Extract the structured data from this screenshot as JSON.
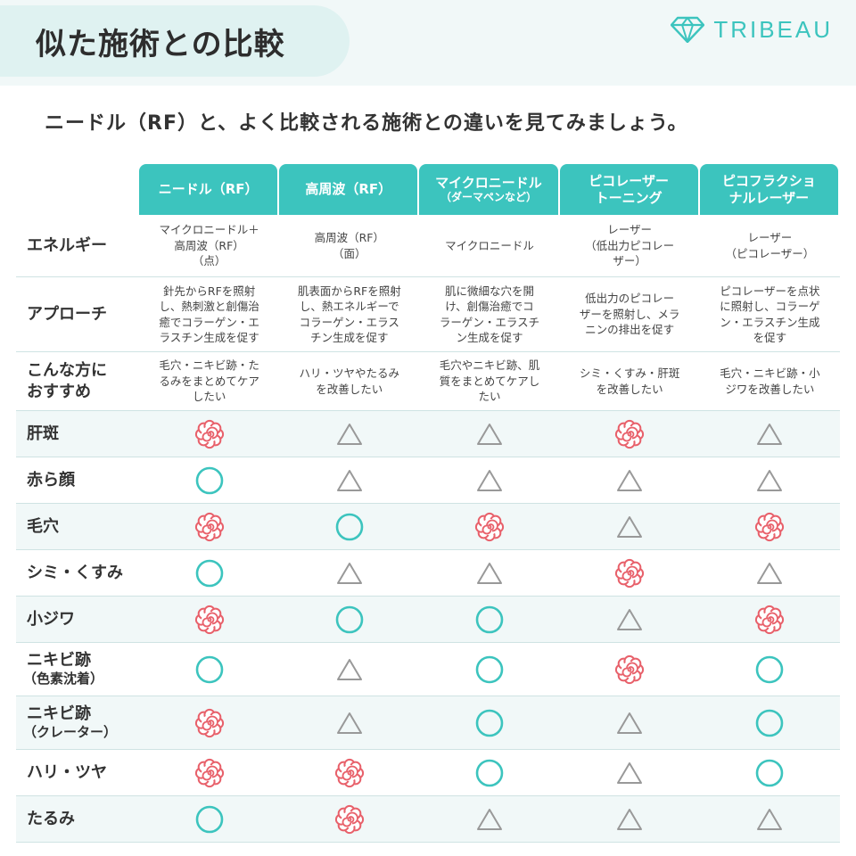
{
  "title": "似た施術との比較",
  "logo": {
    "text": "TRIBEAU",
    "icon": "diamond-icon"
  },
  "intro": "ニードル（RF）と、よく比較される施術との違いを見てみましょう。",
  "colors": {
    "accent": "#3cc4be",
    "flower": "#e8616b",
    "triangle": "#999999",
    "band": "#f1f8f8"
  },
  "legend_marks": {
    "flower": "best (flower)",
    "circle": "good (circle)",
    "triangle": "fair (triangle)"
  },
  "columns": [
    {
      "line1": "ニードル（RF）",
      "line2": ""
    },
    {
      "line1": "高周波（RF）",
      "line2": ""
    },
    {
      "line1": "マイクロニードル",
      "line2": "（ダーマペンなど）"
    },
    {
      "line1": "ピコレーザー",
      "line2": "トーニング"
    },
    {
      "line1": "ピコフラクショ",
      "line2": "ナルレーザー"
    }
  ],
  "text_rows": [
    {
      "label": "エネルギー",
      "cells": [
        "マイクロニードル＋\n高周波（RF）\n（点）",
        "高周波（RF）\n（面）",
        "マイクロニードル",
        "レーザー\n（低出力ピコレー\nザー）",
        "レーザー\n（ピコレーザー）"
      ]
    },
    {
      "label": "アプローチ",
      "cells": [
        "針先からRFを照射\nし、熱刺激と創傷治\n癒でコラーゲン・エ\nラスチン生成を促す",
        "肌表面からRFを照射\nし、熱エネルギーで\nコラーゲン・エラス\nチン生成を促す",
        "肌に微細な穴を開\nけ、創傷治癒でコ\nラーゲン・エラスチ\nン生成を促す",
        "低出力のピコレー\nザーを照射し、メラ\nニンの排出を促す",
        "ピコレーザーを点状\nに照射し、コラーゲ\nン・エラスチン生成\nを促す"
      ]
    },
    {
      "label": "こんな方に\nおすすめ",
      "cells": [
        "毛穴・ニキビ跡・た\nるみをまとめてケア\nしたい",
        "ハリ・ツヤやたるみ\nを改善したい",
        "毛穴やニキビ跡、肌\n質をまとめてケアし\nたい",
        "シミ・くすみ・肝斑\nを改善したい",
        "毛穴・ニキビ跡・小\nジワを改善したい"
      ]
    }
  ],
  "mark_rows": [
    {
      "label": "肝斑",
      "sub": "",
      "marks": [
        "flower",
        "triangle",
        "triangle",
        "flower",
        "triangle"
      ]
    },
    {
      "label": "赤ら顔",
      "sub": "",
      "marks": [
        "circle",
        "triangle",
        "triangle",
        "triangle",
        "triangle"
      ]
    },
    {
      "label": "毛穴",
      "sub": "",
      "marks": [
        "flower",
        "circle",
        "flower",
        "triangle",
        "flower"
      ]
    },
    {
      "label": "シミ・くすみ",
      "sub": "",
      "marks": [
        "circle",
        "triangle",
        "triangle",
        "flower",
        "triangle"
      ]
    },
    {
      "label": "小ジワ",
      "sub": "",
      "marks": [
        "flower",
        "circle",
        "circle",
        "triangle",
        "flower"
      ]
    },
    {
      "label": "ニキビ跡",
      "sub": "（色素沈着）",
      "marks": [
        "circle",
        "triangle",
        "circle",
        "flower",
        "circle"
      ]
    },
    {
      "label": "ニキビ跡",
      "sub": "（クレーター）",
      "marks": [
        "flower",
        "triangle",
        "circle",
        "triangle",
        "circle"
      ]
    },
    {
      "label": "ハリ・ツヤ",
      "sub": "",
      "marks": [
        "flower",
        "flower",
        "circle",
        "triangle",
        "circle"
      ]
    },
    {
      "label": "たるみ",
      "sub": "",
      "marks": [
        "circle",
        "flower",
        "triangle",
        "triangle",
        "triangle"
      ]
    }
  ]
}
